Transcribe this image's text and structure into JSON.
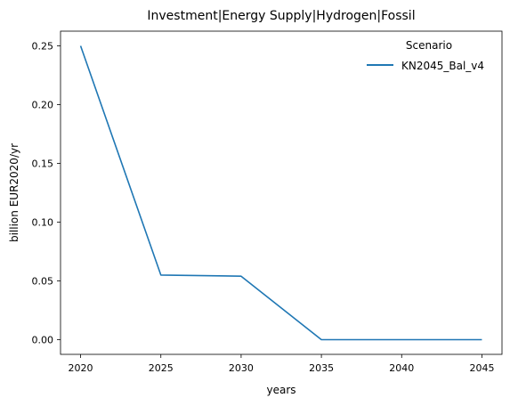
{
  "chart_data": {
    "type": "line",
    "title": "Investment|Energy Supply|Hydrogen|Fossil",
    "xlabel": "years",
    "ylabel": "billion EUR2020/yr",
    "x": [
      2020,
      2025,
      2030,
      2035,
      2040,
      2045
    ],
    "series": [
      {
        "name": "KN2045_Bal_v4",
        "values": [
          0.25,
          0.055,
          0.054,
          0.0,
          0.0,
          0.0
        ],
        "color": "#1f77b4"
      }
    ],
    "xticks": [
      2020,
      2025,
      2030,
      2035,
      2040,
      2045
    ],
    "xtick_labels": [
      "2020",
      "2025",
      "2030",
      "2035",
      "2040",
      "2045"
    ],
    "yticks": [
      0.0,
      0.05,
      0.1,
      0.15,
      0.2,
      0.25
    ],
    "ytick_labels": [
      "0.00",
      "0.05",
      "0.10",
      "0.15",
      "0.20",
      "0.25"
    ],
    "xlim": [
      2018.75,
      2046.25
    ],
    "ylim": [
      -0.0125,
      0.2625
    ],
    "grid": false,
    "legend": {
      "title": "Scenario",
      "placement": "top-right"
    }
  }
}
